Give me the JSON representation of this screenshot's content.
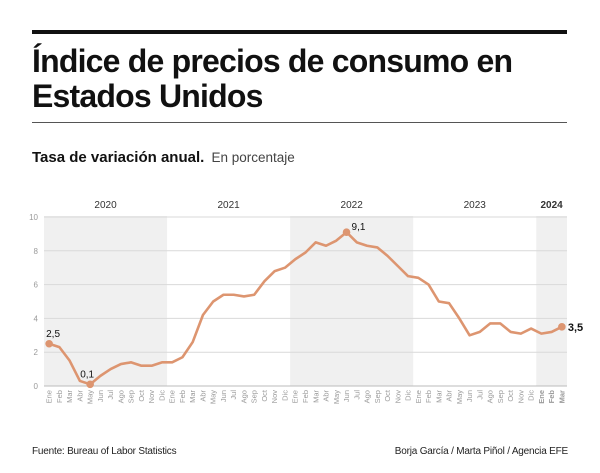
{
  "header": {
    "title": "Índice de precios de consumo en Estados Unidos",
    "subtitle": "Tasa de variación anual.",
    "subtitle_note": "En porcentaje"
  },
  "footer": {
    "source": "Fuente: Bureau of Labor Statistics",
    "credit": "Borja García / Marta Piñol / Agencia EFE"
  },
  "colors": {
    "line": "#dd9570",
    "band": "#f0f0f0",
    "grid": "#d9d9d9",
    "text": "#111111",
    "muted": "#9a9a9a"
  },
  "chart_data": {
    "type": "line",
    "ylim": [
      0,
      10
    ],
    "yticks": [
      0,
      2,
      4,
      6,
      8,
      10
    ],
    "grid": true,
    "years": [
      {
        "label": "2020",
        "months": 12,
        "shaded": true,
        "bold": false
      },
      {
        "label": "2021",
        "months": 12,
        "shaded": false,
        "bold": false
      },
      {
        "label": "2022",
        "months": 12,
        "shaded": true,
        "bold": false
      },
      {
        "label": "2023",
        "months": 12,
        "shaded": false,
        "bold": false
      },
      {
        "label": "2024",
        "months": 3,
        "shaded": true,
        "bold": true
      }
    ],
    "month_labels": [
      "Ene",
      "Feb",
      "Mar",
      "Abr",
      "May",
      "Jun",
      "Jul",
      "Ago",
      "Sep",
      "Oct",
      "Nov",
      "Dic"
    ],
    "series": [
      {
        "values": [
          2.5,
          2.3,
          1.5,
          0.3,
          0.1,
          0.6,
          1.0,
          1.3,
          1.4,
          1.2,
          1.2,
          1.4,
          1.4,
          1.7,
          2.6,
          4.2,
          5.0,
          5.4,
          5.4,
          5.3,
          5.4,
          6.2,
          6.8,
          7.0,
          7.5,
          7.9,
          8.5,
          8.3,
          8.6,
          9.1,
          8.5,
          8.3,
          8.2,
          7.7,
          7.1,
          6.5,
          6.4,
          6.0,
          5.0,
          4.9,
          4.0,
          3.0,
          3.2,
          3.7,
          3.7,
          3.2,
          3.1,
          3.4,
          3.1,
          3.2,
          3.5
        ]
      }
    ],
    "annotations": [
      {
        "index": 0,
        "label": "2,5",
        "bold": false
      },
      {
        "index": 4,
        "label": "0,1",
        "bold": false
      },
      {
        "index": 29,
        "label": "9,1",
        "bold": false
      },
      {
        "index": 50,
        "label": "3,5",
        "bold": true
      }
    ]
  }
}
